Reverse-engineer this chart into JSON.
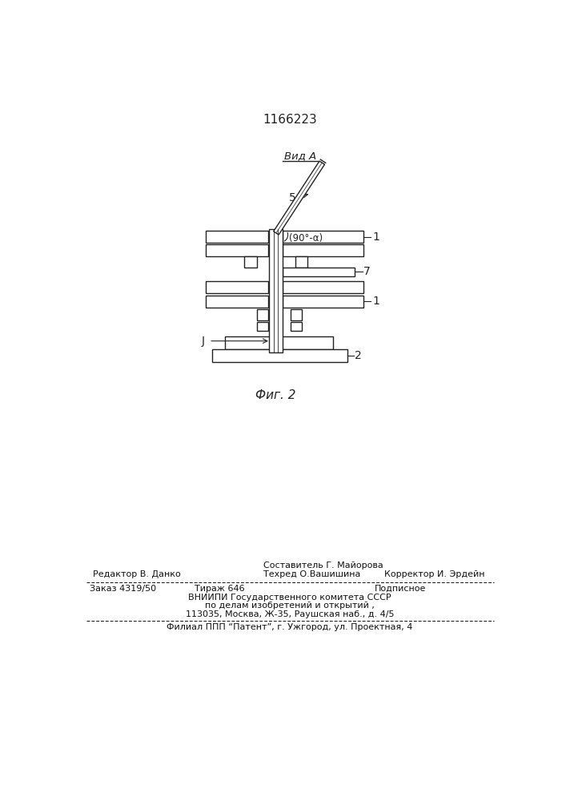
{
  "title_number": "1166223",
  "fig_label": "Фиг. 2",
  "view_label": "Вид A",
  "angle_label": "(90°-α)",
  "label_1": "1",
  "label_2": "2",
  "label_3": "J",
  "label_5": "5",
  "label_7": "7",
  "footer_sestavitel": "Составитель Г. Майорова",
  "footer_redaktor": "Редактор В. Данко",
  "footer_tehred": "Техред О.Вашишина",
  "footer_korrektor": "Корректор И. Эрдейн",
  "footer_order": "Заказ 4319/50",
  "footer_tirazh": "Тираж 646",
  "footer_podpisnoe": "Подписное",
  "footer_vnipi": "ВНИИПИ Государственного комитета СССР",
  "footer_po_delam": "по делам изобретений и открытий ,",
  "footer_address": "113035, Москва, Ж-35, Раушская наб., д. 4/5",
  "footer_filial": "Филиал ППП “Патент”, г. Ужгород, ул. Проектная, 4",
  "bg_color": "#ffffff",
  "line_color": "#222222"
}
